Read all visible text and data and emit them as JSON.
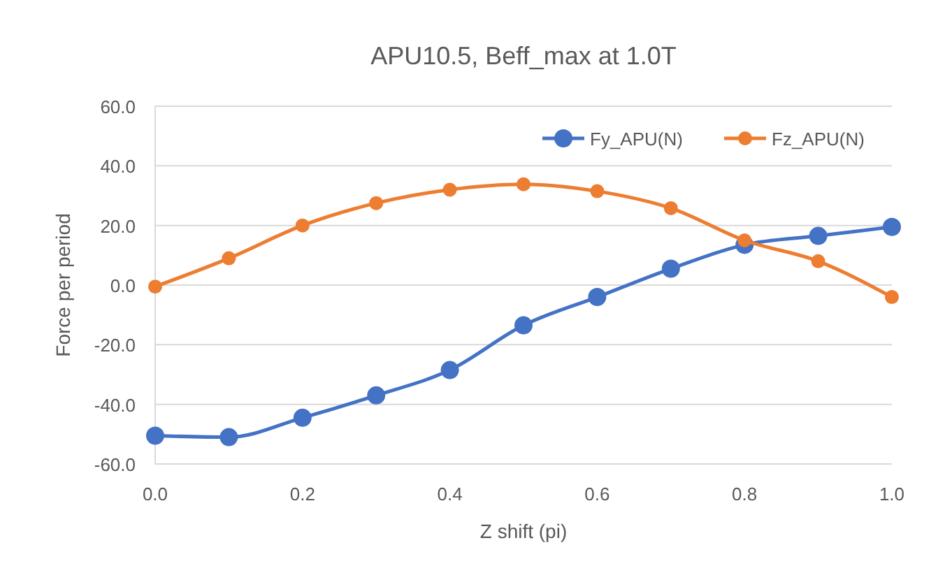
{
  "chart_data": {
    "type": "line",
    "title": "APU10.5, Beff_max at 1.0T",
    "xlabel": "Z shift (pi)",
    "ylabel": "Force per period",
    "x": [
      0,
      0.1,
      0.2,
      0.3,
      0.4,
      0.5,
      0.6,
      0.7,
      0.8,
      0.9,
      1.0
    ],
    "series": [
      {
        "name": "Fy_APU(N)",
        "color": "#4472c4",
        "values": [
          -50.5,
          -51,
          -44.5,
          -37,
          -28.5,
          -13.5,
          -4,
          5.5,
          13.5,
          16.5,
          19.5
        ]
      },
      {
        "name": "Fz_APU(N)",
        "color": "#ed7d31",
        "values": [
          -0.5,
          9,
          20,
          27.5,
          32,
          33.8,
          31.5,
          25.8,
          15,
          8,
          -4
        ]
      }
    ],
    "xlim": [
      0,
      1
    ],
    "xticks": [
      {
        "value": 0,
        "label": "0.0"
      },
      0.2,
      0.4,
      0.6,
      0.8,
      {
        "value": 1,
        "label": "1.0"
      }
    ],
    "ylim": [
      -60,
      60
    ],
    "yticks": [
      {
        "value": -60,
        "label": "-60.0"
      },
      {
        "value": -40,
        "label": "-40.0"
      },
      {
        "value": -20,
        "label": "-20.0"
      },
      {
        "value": 0,
        "label": "0.0"
      },
      {
        "value": 20,
        "label": "20.0"
      },
      {
        "value": 40,
        "label": "40.0"
      },
      {
        "value": 60,
        "label": "60.0"
      }
    ],
    "grid": "y",
    "legend": "top right",
    "marker": "circle",
    "line_style": "solid"
  }
}
